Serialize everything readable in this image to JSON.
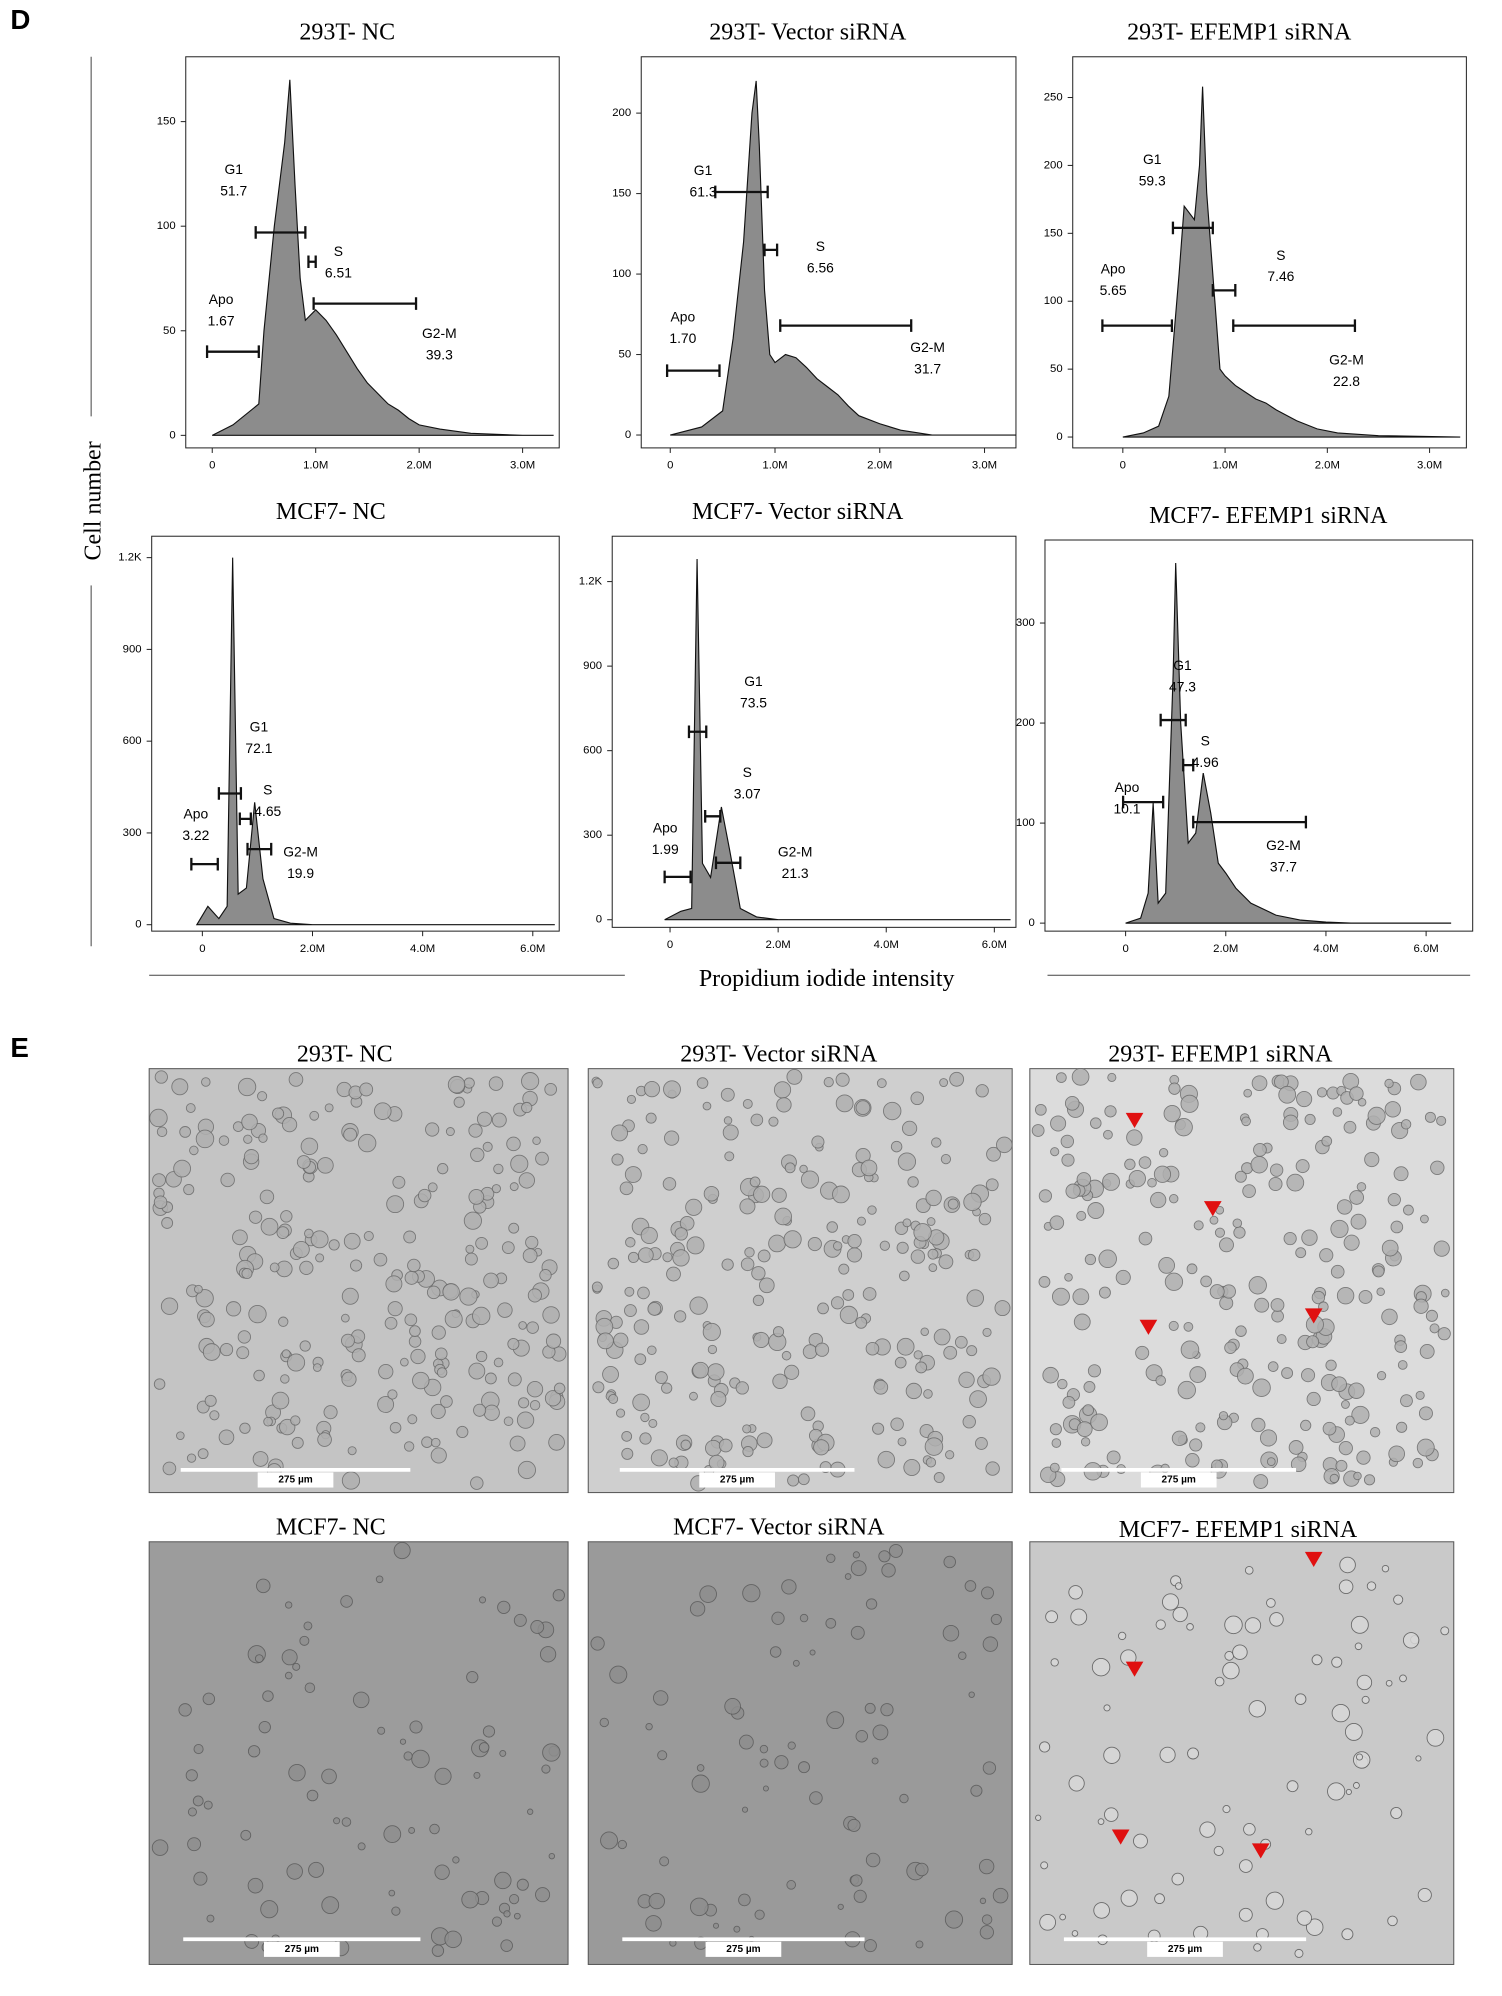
{
  "panel_labels": [
    "D",
    "E"
  ],
  "flow": {
    "y_label": "Cell number",
    "x_label": "Propidium iodide intensity"
  },
  "chart_data": [
    {
      "type": "area",
      "title": "293T- NC",
      "color": "#8c8c8c",
      "x": [
        0,
        200000,
        450000,
        500000,
        600000,
        700000,
        750000,
        800000,
        850000,
        900000,
        1000000,
        1100000,
        1200000,
        1300000,
        1400000,
        1500000,
        1600000,
        1700000,
        1800000,
        1900000,
        2000000,
        2200000,
        2500000,
        3000000,
        3300000
      ],
      "values": [
        0,
        5,
        15,
        50,
        100,
        140,
        170,
        120,
        75,
        55,
        60,
        55,
        48,
        40,
        32,
        25,
        20,
        15,
        12,
        8,
        5,
        3,
        1,
        0,
        0
      ],
      "xlim": [
        -256000,
        3354000
      ],
      "xticks": [
        0,
        {
          "value": 1000000,
          "label": "1.0M"
        },
        {
          "value": 2000000,
          "label": "2.0M"
        },
        {
          "value": 3000000,
          "label": "3.0M"
        }
      ],
      "ylim": [
        -6,
        181
      ],
      "yticks": [
        0,
        50,
        100,
        150
      ],
      "gates": [
        {
          "name": "G1",
          "value": 51.7,
          "range": [
            420000,
            900000
          ],
          "level": 97
        },
        {
          "name": "S",
          "value": 6.51,
          "range": [
            930000,
            1000000
          ],
          "level": 83
        },
        {
          "name": "Apo",
          "value": 1.67,
          "range": [
            -50000,
            450000
          ],
          "level": 40
        },
        {
          "name": "G2-M",
          "value": 39.3,
          "range": [
            980000,
            1970000
          ],
          "level": 63
        }
      ]
    },
    {
      "type": "area",
      "title": "293T- Vector siRNA",
      "color": "#8c8c8c",
      "x": [
        0,
        300000,
        500000,
        600000,
        700000,
        780000,
        820000,
        850000,
        900000,
        950000,
        1000000,
        1100000,
        1200000,
        1300000,
        1400000,
        1500000,
        1600000,
        1700000,
        1800000,
        2000000,
        2200000,
        2500000,
        3300000
      ],
      "values": [
        0,
        5,
        15,
        60,
        120,
        200,
        220,
        180,
        90,
        50,
        45,
        50,
        48,
        42,
        35,
        30,
        25,
        18,
        12,
        7,
        3,
        0,
        0
      ],
      "xlim": [
        -277000,
        3300000
      ],
      "xticks": [
        0,
        {
          "value": 1000000,
          "label": "1.0M"
        },
        {
          "value": 2000000,
          "label": "2.0M"
        },
        {
          "value": 3000000,
          "label": "3.0M"
        }
      ],
      "ylim": [
        -8,
        235
      ],
      "yticks": [
        0,
        50,
        100,
        150,
        200
      ],
      "gates": [
        {
          "name": "G1",
          "value": 61.3,
          "range": [
            430000,
            930000
          ],
          "level": 151
        },
        {
          "name": "S",
          "value": 6.56,
          "range": [
            900000,
            1020000
          ],
          "level": 115
        },
        {
          "name": "Apo",
          "value": {
            "value": 1.7,
            "label": "1.70"
          },
          "range": [
            -30000,
            470000
          ],
          "level": 40
        },
        {
          "name": "G2-M",
          "value": 31.7,
          "range": [
            1050000,
            2300000
          ],
          "level": 68
        }
      ]
    },
    {
      "type": "area",
      "title": "293T- EFEMP1 siRNA",
      "color": "#8c8c8c",
      "x": [
        0,
        200000,
        350000,
        450000,
        550000,
        600000,
        700000,
        750000,
        780000,
        820000,
        900000,
        950000,
        1000000,
        1100000,
        1200000,
        1300000,
        1400000,
        1500000,
        1700000,
        1900000,
        2100000,
        2500000,
        3300000
      ],
      "values": [
        0,
        3,
        8,
        30,
        120,
        170,
        160,
        200,
        258,
        180,
        100,
        50,
        45,
        38,
        33,
        28,
        25,
        20,
        12,
        6,
        3,
        1,
        0
      ],
      "xlim": [
        -490000,
        3360000
      ],
      "xticks": [
        0,
        {
          "value": 1000000,
          "label": "1.0M"
        },
        {
          "value": 2000000,
          "label": "2.0M"
        },
        {
          "value": 3000000,
          "label": "3.0M"
        }
      ],
      "ylim": [
        -8,
        280
      ],
      "yticks": [
        0,
        50,
        100,
        150,
        200,
        250
      ],
      "gates": [
        {
          "name": "G1",
          "value": 59.3,
          "range": [
            490000,
            880000
          ],
          "level": 154
        },
        {
          "name": "S",
          "value": 7.46,
          "range": [
            880000,
            1100000
          ],
          "level": 108
        },
        {
          "name": "Apo",
          "value": 5.65,
          "range": [
            -200000,
            480000
          ],
          "level": 82
        },
        {
          "name": "G2-M",
          "value": 22.8,
          "range": [
            1080000,
            2270000
          ],
          "level": 82
        }
      ]
    },
    {
      "type": "area",
      "title": "MCF7- NC",
      "color": "#8c8c8c",
      "x": [
        -100000,
        100000,
        300000,
        450000,
        550000,
        650000,
        800000,
        950000,
        1100000,
        1300000,
        1600000,
        2000000,
        6400000
      ],
      "values": [
        0,
        60,
        20,
        60,
        1200,
        100,
        120,
        400,
        150,
        20,
        5,
        0,
        0
      ],
      "xlim": [
        -920000,
        6480000
      ],
      "xticks": [
        0,
        {
          "value": 2000000,
          "label": "2.0M"
        },
        {
          "value": 4000000,
          "label": "4.0M"
        },
        {
          "value": 6000000,
          "label": "6.0M"
        }
      ],
      "ylim": [
        -21,
        1270
      ],
      "yticks": [
        0,
        300,
        600,
        900,
        {
          "value": 1200,
          "label": "1.2K"
        }
      ],
      "gates": [
        {
          "name": "G1",
          "value": 72.1,
          "range": [
            300000,
            700000
          ],
          "level": 429
        },
        {
          "name": "S",
          "value": 4.65,
          "range": [
            680000,
            880000
          ],
          "level": 346
        },
        {
          "name": "Apo",
          "value": 3.22,
          "range": [
            -200000,
            280000
          ],
          "level": 198
        },
        {
          "name": "G2-M",
          "value": 19.9,
          "range": [
            820000,
            1250000
          ],
          "level": 247
        }
      ]
    },
    {
      "type": "area",
      "title": "MCF7- Vector siRNA",
      "color": "#8c8c8c",
      "x": [
        -100000,
        200000,
        400000,
        500000,
        600000,
        750000,
        950000,
        1100000,
        1300000,
        1600000,
        2000000,
        6300000
      ],
      "values": [
        0,
        30,
        40,
        1280,
        200,
        150,
        400,
        250,
        40,
        10,
        0,
        0
      ],
      "xlim": [
        -1070000,
        6400000
      ],
      "xticks": [
        0,
        {
          "value": 2000000,
          "label": "2.0M"
        },
        {
          "value": 4000000,
          "label": "4.0M"
        },
        {
          "value": 6000000,
          "label": "6.0M"
        }
      ],
      "ylim": [
        -27,
        1361
      ],
      "yticks": [
        0,
        300,
        600,
        900,
        {
          "value": 1200,
          "label": "1.2K"
        }
      ],
      "gates": [
        {
          "name": "G1",
          "value": 73.5,
          "range": [
            350000,
            670000
          ],
          "level": 667
        },
        {
          "name": "S",
          "value": 3.07,
          "range": [
            650000,
            930000
          ],
          "level": 367
        },
        {
          "name": "Apo",
          "value": 1.99,
          "range": [
            -100000,
            380000
          ],
          "level": 152
        },
        {
          "name": "G2-M",
          "value": 21.3,
          "range": [
            850000,
            1300000
          ],
          "level": 202
        }
      ]
    },
    {
      "type": "area",
      "title": "MCF7- EFEMP1 siRNA",
      "color": "#8c8c8c",
      "x": [
        0,
        300000,
        450000,
        550000,
        650000,
        800000,
        950000,
        1000000,
        1100000,
        1250000,
        1400000,
        1550000,
        1700000,
        1850000,
        2000000,
        2200000,
        2500000,
        3000000,
        3500000,
        4000000,
        4500000,
        6500000
      ],
      "values": [
        0,
        5,
        30,
        120,
        20,
        30,
        250,
        360,
        200,
        80,
        90,
        150,
        110,
        60,
        50,
        35,
        20,
        8,
        3,
        1,
        0,
        0
      ],
      "xlim": [
        -1610000,
        6930000
      ],
      "xticks": [
        0,
        {
          "value": 2000000,
          "label": "2.0M"
        },
        {
          "value": 4000000,
          "label": "4.0M"
        },
        {
          "value": 6000000,
          "label": "6.0M"
        }
      ],
      "ylim": [
        -8,
        383
      ],
      "yticks": [
        0,
        100,
        200,
        300
      ],
      "gates": [
        {
          "name": "G1",
          "value": 47.3,
          "range": [
            700000,
            1200000
          ],
          "level": 203
        },
        {
          "name": "S",
          "value": 4.96,
          "range": [
            1150000,
            1350000
          ],
          "level": 158
        },
        {
          "name": "Apo",
          "value": 10.1,
          "range": [
            -50000,
            750000
          ],
          "level": 121
        },
        {
          "name": "G2-M",
          "value": 37.7,
          "range": [
            1350000,
            3600000
          ],
          "level": 101
        }
      ]
    }
  ],
  "images": [
    {
      "title": "293T- NC",
      "scale_bar": "275 µm"
    },
    {
      "title": "293T- Vector siRNA",
      "scale_bar": "275 µm"
    },
    {
      "title": "293T- EFEMP1 siRNA",
      "scale_bar": "275 µm"
    },
    {
      "title": "MCF7- NC",
      "scale_bar": "275 µm"
    },
    {
      "title": "MCF7- Vector siRNA",
      "scale_bar": "275 µm"
    },
    {
      "title": "MCF7- EFEMP1 siRNA",
      "scale_bar": "275 µm"
    }
  ]
}
